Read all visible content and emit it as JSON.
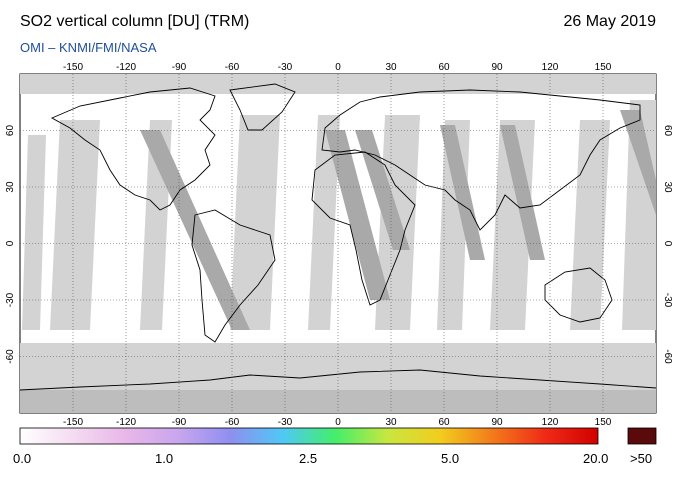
{
  "header": {
    "title": "SO2 vertical column [DU] (TRM)",
    "date": "26 May 2019",
    "source": "OMI  –  KNMI/FMI/NASA"
  },
  "map": {
    "lon_ticks": [
      "-150",
      "-120",
      "-90",
      "-60",
      "-30",
      "0",
      "30",
      "60",
      "90",
      "120",
      "150"
    ],
    "lat_ticks": [
      "60",
      "30",
      "0",
      "-30",
      "-60"
    ],
    "colors": {
      "background": "#ffffff",
      "swath_light": "#d3d3d3",
      "swath_dark": "#a9a9a9",
      "land_outline": "#000000",
      "grid": "#555555"
    }
  },
  "colorbar": {
    "labels": [
      "0.0",
      "1.0",
      "2.5",
      "5.0",
      "20.0"
    ],
    "overflow_label": ">50",
    "overflow_color": "#5a0a0a",
    "gradient_colors": [
      "#ffffff",
      "#f4dcf2",
      "#e9b7e9",
      "#c9a6ee",
      "#8f8ff0",
      "#4fc8f6",
      "#43ef6a",
      "#c8e640",
      "#f2cd1e",
      "#f37a1b",
      "#ef2a16",
      "#d20000"
    ]
  }
}
